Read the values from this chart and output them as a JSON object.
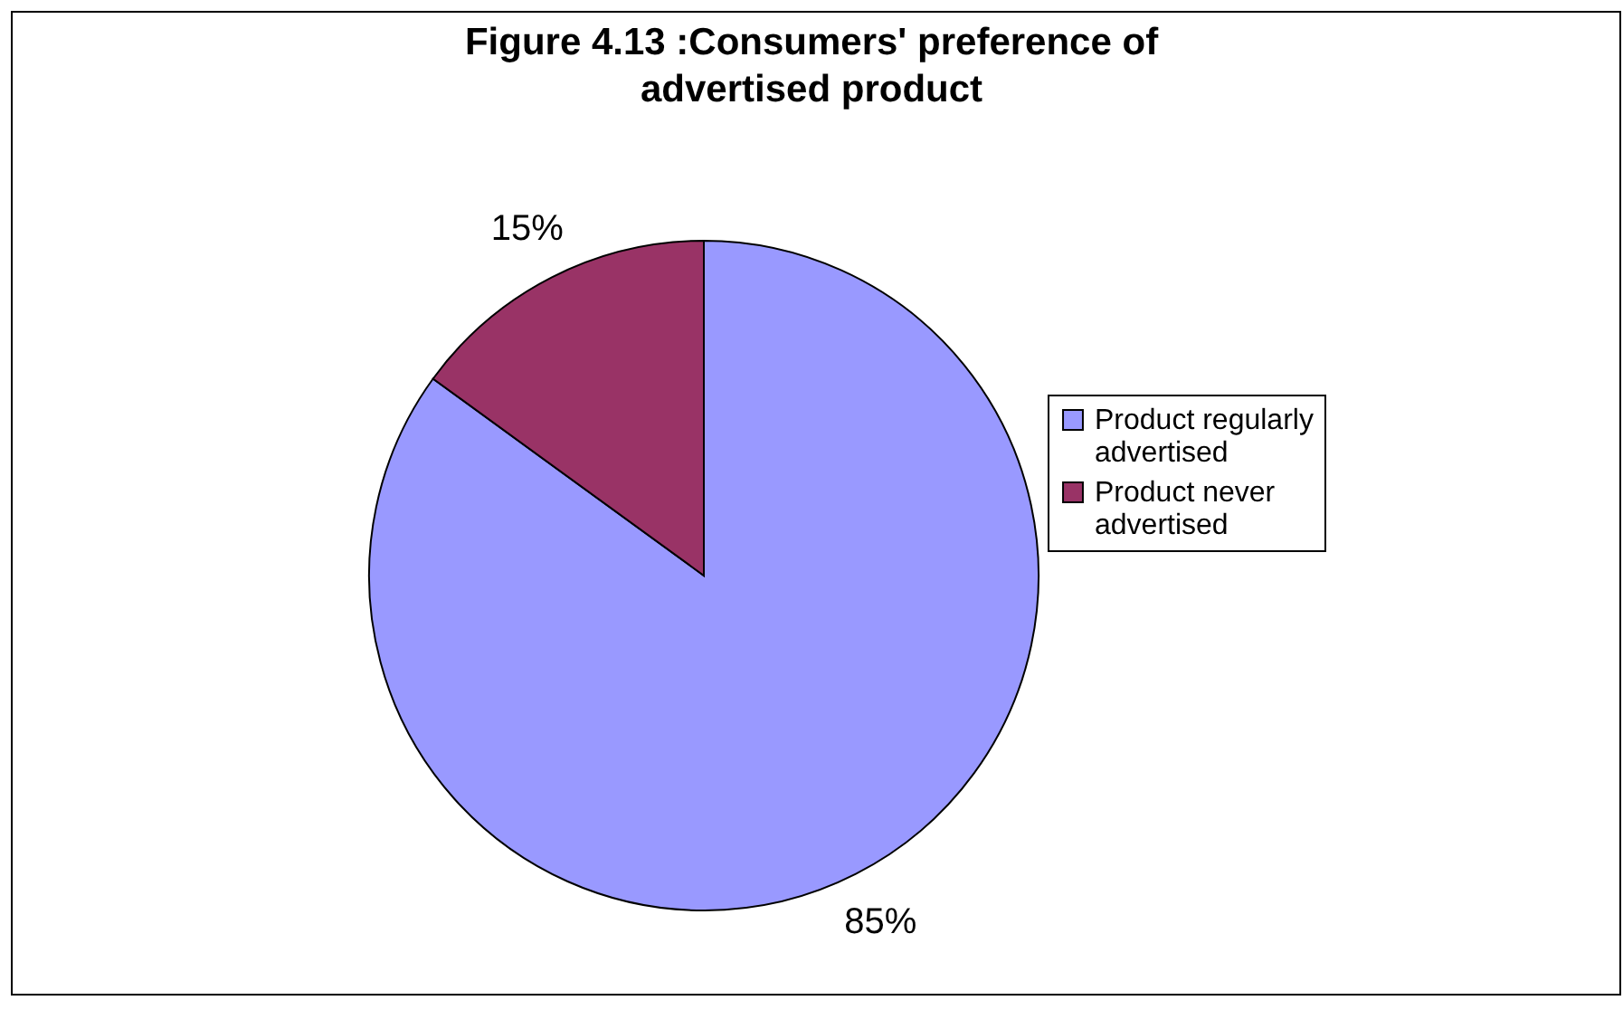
{
  "chart_data": {
    "type": "pie",
    "title": "Figure 4.13 :Consumers' preference of advertised product",
    "categories": [
      "Product regularly advertised",
      "Product never advertised"
    ],
    "values": [
      85,
      15
    ],
    "colors": [
      "#9999ff",
      "#993366"
    ],
    "value_labels": [
      "85%",
      "15%"
    ],
    "legend": "right"
  }
}
